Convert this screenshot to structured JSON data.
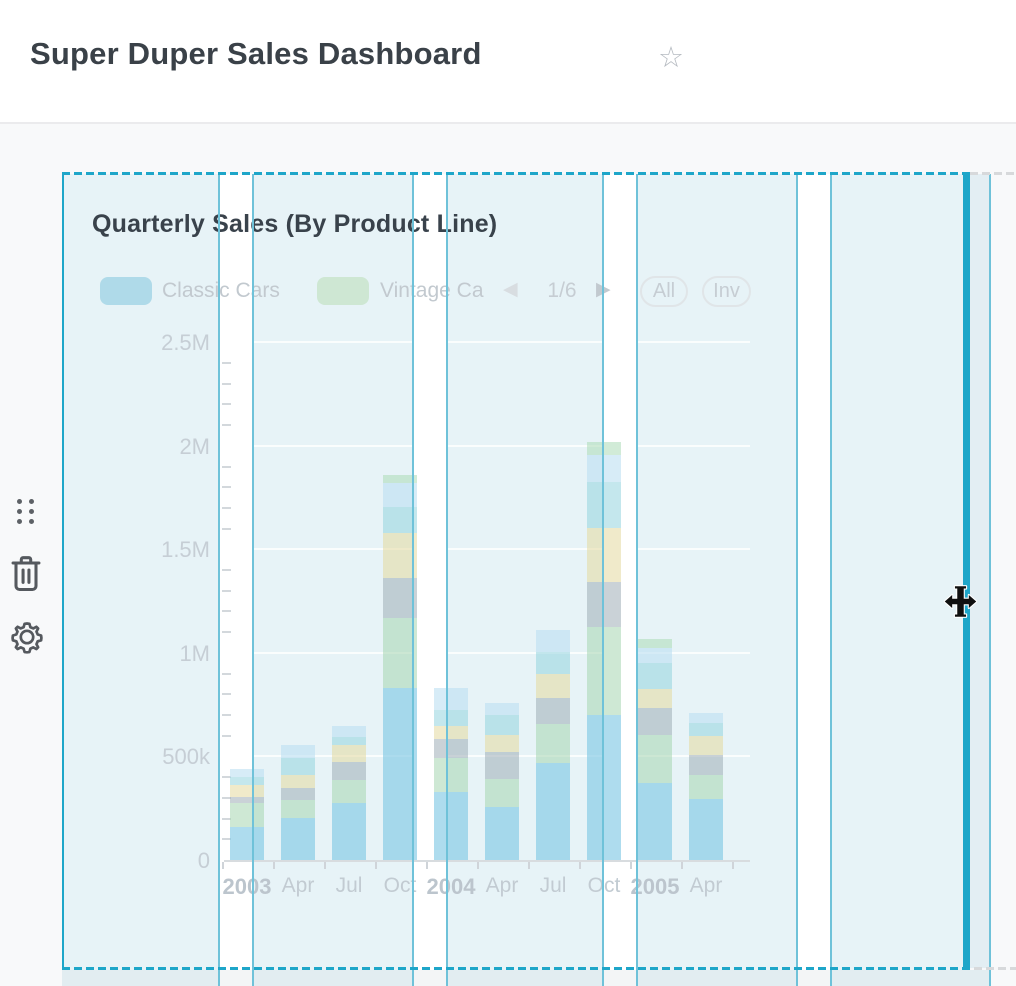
{
  "header": {
    "title": "Super Duper Sales Dashboard",
    "star_icon": "star-outline",
    "star_glyph": "☆"
  },
  "side_toolbar": {
    "drag_icon": "drag-handle-dots",
    "delete_icon": "trash-can",
    "settings_icon": "gear"
  },
  "cursor": "move-cursor",
  "colors": {
    "accent_teal": "#1ea6c9",
    "grid_line_teal": "#6fc2d9",
    "card_fill": "#e7f3f7",
    "page_bg": "#f8f9fa"
  },
  "card": {
    "title": "Quarterly Sales (By Product Line)",
    "legend": {
      "items": [
        {
          "label": "Classic Cars",
          "color": "#afdae9"
        },
        {
          "label": "Vintage Ca",
          "color": "#cee7d3"
        }
      ],
      "pager": {
        "prev_glyph": "◀",
        "label": "1/6",
        "next_glyph": "▶"
      },
      "buttons": [
        {
          "label": "All"
        },
        {
          "label": "Inv"
        }
      ]
    },
    "chart_data": {
      "type": "bar",
      "stacked": true,
      "title": "Quarterly Sales (By Product Line)",
      "legend_position": "top",
      "grid": true,
      "categories": [
        "2003",
        "Apr",
        "Jul",
        "Oct",
        "2004",
        "Apr",
        "Jul",
        "Oct",
        "2005",
        "Apr"
      ],
      "category_emphasis": [
        true,
        false,
        false,
        false,
        true,
        false,
        false,
        false,
        true,
        false
      ],
      "y_ticks": [
        "0",
        "500k",
        "1M",
        "1.5M",
        "2M",
        "2.5M"
      ],
      "y_tick_values_k": [
        0,
        500,
        1000,
        1500,
        2000,
        2500
      ],
      "ylim_k": [
        0,
        2500
      ],
      "values_unit": "thousands",
      "series": [
        {
          "name": "Classic Cars",
          "color": "rgba(125,199,227,0.62)",
          "values_k": [
            160,
            203,
            275,
            831,
            328,
            256,
            469,
            700,
            372,
            295
          ]
        },
        {
          "name": "Vintage Cars",
          "color": "rgba(165,214,176,0.55)",
          "values_k": [
            115,
            87,
            111,
            338,
            164,
            135,
            188,
            425,
            232,
            116
          ]
        },
        {
          "name": "(unlabeled gray)",
          "color": "rgba(158,173,182,0.55)",
          "values_k": [
            30,
            58,
            87,
            193,
            92,
            130,
            126,
            217,
            130,
            97
          ]
        },
        {
          "name": "(unlabeled cream)",
          "color": "rgba(228,216,158,0.55)",
          "values_k": [
            58,
            63,
            82,
            217,
            63,
            82,
            116,
            261,
            92,
            92
          ]
        },
        {
          "name": "(unlabeled cyan)",
          "color": "rgba(148,212,223,0.55)",
          "values_k": [
            39,
            82,
            39,
            126,
            77,
            97,
            106,
            222,
            126,
            63
          ]
        },
        {
          "name": "(unlabeled pale blue)",
          "color": "rgba(189,223,242,0.60)",
          "values_k": [
            38,
            62,
            53,
            116,
            106,
            58,
            106,
            130,
            72,
            48
          ]
        },
        {
          "name": "(unlabeled light green)",
          "color": "rgba(172,219,183,0.55)",
          "values_k": [
            0,
            0,
            0,
            39,
            0,
            0,
            0,
            63,
            43,
            0
          ]
        }
      ]
    }
  }
}
